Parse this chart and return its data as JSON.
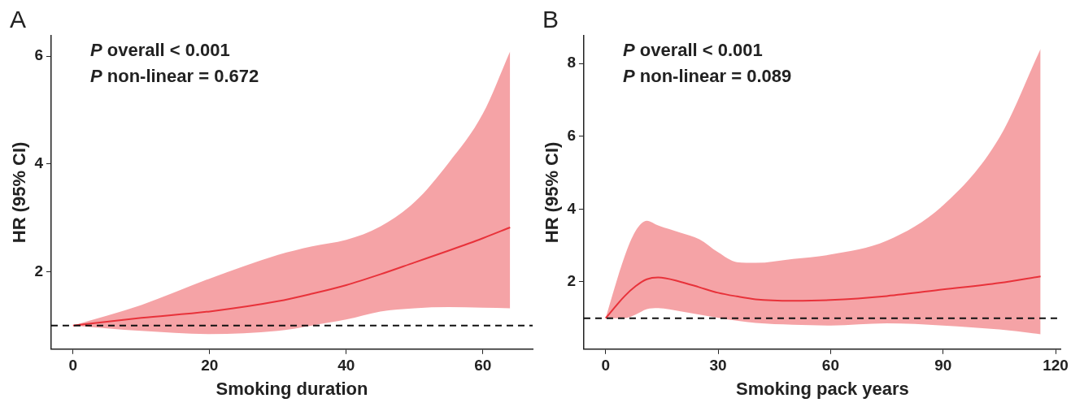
{
  "chart_data": [
    {
      "type": "line",
      "title": "A",
      "xlabel": "Smoking duration",
      "ylabel": "HR (95% CI)",
      "annotations": [
        "P overall < 0.001",
        "P non-linear = 0.672"
      ],
      "xlim": [
        -3.2,
        67.3
      ],
      "xticks": [
        0,
        20,
        40,
        60
      ],
      "ylim": [
        0.56,
        6.38
      ],
      "yticks": [
        2,
        4,
        6
      ],
      "grid": false,
      "legend": false,
      "marker": "none",
      "line_style": "solid",
      "ref_lines": [
        {
          "axis": "y",
          "value": 1,
          "line_style": "dashed",
          "color": "#111111"
        }
      ],
      "series": [
        {
          "color": "#e8323a",
          "x": [
            0,
            10,
            20,
            30,
            35,
            40,
            45,
            50,
            55,
            60,
            64
          ],
          "values": [
            1,
            1.14,
            1.26,
            1.45,
            1.59,
            1.75,
            1.95,
            2.17,
            2.39,
            2.62,
            2.82
          ],
          "lower": [
            1,
            0.9,
            0.84,
            0.9,
            1.0,
            1.11,
            1.26,
            1.32,
            1.34,
            1.33,
            1.32
          ],
          "upper": [
            1,
            1.38,
            1.87,
            2.31,
            2.47,
            2.59,
            2.84,
            3.29,
            4.02,
            4.93,
            6.09
          ]
        }
      ]
    },
    {
      "type": "line",
      "title": "B",
      "xlabel": "Smoking pack years",
      "ylabel": "HR (95% CI)",
      "annotations": [
        "P overall < 0.001",
        "P non-linear = 0.089"
      ],
      "xlim": [
        -5.8,
        121.5
      ],
      "xticks": [
        0,
        30,
        60,
        90,
        120
      ],
      "ylim": [
        0.15,
        8.76
      ],
      "yticks": [
        2,
        4,
        6,
        8
      ],
      "grid": false,
      "legend": false,
      "marker": "none",
      "line_style": "solid",
      "ref_lines": [
        {
          "axis": "y",
          "value": 1,
          "line_style": "dashed",
          "color": "#111111"
        }
      ],
      "series": [
        {
          "color": "#e8323a",
          "x": [
            0,
            5,
            8,
            11,
            14,
            20,
            25,
            30,
            35,
            40,
            50,
            60,
            75,
            90,
            105,
            116
          ],
          "values": [
            1,
            1.6,
            1.88,
            2.07,
            2.12,
            2.0,
            1.85,
            1.7,
            1.6,
            1.52,
            1.48,
            1.5,
            1.61,
            1.79,
            1.97,
            2.15
          ],
          "lower": [
            1,
            1.0,
            1.1,
            1.25,
            1.28,
            1.19,
            1.1,
            1.01,
            0.93,
            0.87,
            0.82,
            0.8,
            0.86,
            0.8,
            0.69,
            0.56
          ],
          "upper": [
            1,
            2.68,
            3.4,
            3.68,
            3.55,
            3.35,
            3.17,
            2.81,
            2.54,
            2.52,
            2.63,
            2.75,
            3.13,
            4.1,
            5.96,
            8.4
          ]
        }
      ]
    }
  ]
}
